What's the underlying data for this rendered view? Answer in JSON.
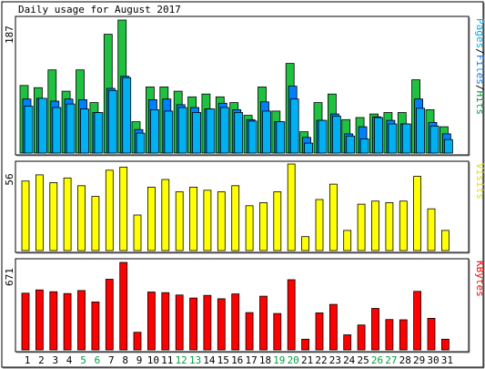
{
  "chart_data": [
    {
      "type": "bar",
      "title": "Daily usage for August 2017",
      "ymax_label": "187",
      "legend": [
        {
          "text": "Pages",
          "color": "#00b0f0"
        },
        {
          "text": "Files",
          "color": "#0080ff"
        },
        {
          "text": "Hits",
          "color": "#00a040"
        }
      ],
      "sep": "/",
      "categories": [
        "1",
        "2",
        "3",
        "4",
        "5",
        "6",
        "7",
        "8",
        "9",
        "10",
        "11",
        "12",
        "13",
        "14",
        "15",
        "16",
        "17",
        "18",
        "19",
        "20",
        "21",
        "22",
        "23",
        "24",
        "25",
        "26",
        "27",
        "28",
        "29",
        "30",
        "31"
      ],
      "weekend_days": [
        "5",
        "6",
        "12",
        "13",
        "19",
        "20",
        "26",
        "27"
      ],
      "series": [
        {
          "name": "Hits",
          "color": "#20c040",
          "values": [
            95,
            92,
            117,
            87,
            117,
            71,
            167,
            187,
            44,
            93,
            93,
            87,
            79,
            83,
            79,
            71,
            53,
            93,
            59,
            126,
            30,
            71,
            83,
            47,
            50,
            55,
            57,
            57,
            103,
            61,
            37
          ]
        },
        {
          "name": "Files",
          "color": "#0080ff",
          "values": [
            76,
            77,
            73,
            76,
            75,
            57,
            91,
            108,
            33,
            75,
            76,
            68,
            64,
            62,
            70,
            61,
            47,
            72,
            44,
            94,
            22,
            46,
            55,
            27,
            37,
            51,
            46,
            41,
            76,
            43,
            27
          ]
        },
        {
          "name": "Pages",
          "color": "#00b0f0",
          "values": [
            66,
            77,
            64,
            69,
            62,
            57,
            88,
            106,
            28,
            61,
            59,
            64,
            57,
            62,
            64,
            57,
            45,
            59,
            44,
            76,
            14,
            46,
            52,
            24,
            20,
            50,
            41,
            41,
            63,
            38,
            19
          ]
        }
      ]
    },
    {
      "type": "bar",
      "ymax_label": "56",
      "legend": [
        {
          "text": "Visits",
          "color": "#e0e000"
        }
      ],
      "categories": [
        "1",
        "2",
        "3",
        "4",
        "5",
        "6",
        "7",
        "8",
        "9",
        "10",
        "11",
        "12",
        "13",
        "14",
        "15",
        "16",
        "17",
        "18",
        "19",
        "20",
        "21",
        "22",
        "23",
        "24",
        "25",
        "26",
        "27",
        "28",
        "29",
        "30",
        "31"
      ],
      "series": [
        {
          "name": "Visits",
          "color": "#ffff00",
          "values": [
            45,
            49,
            44,
            47,
            42,
            35,
            52,
            54,
            23,
            41,
            46,
            38,
            41,
            39,
            38,
            42,
            29,
            31,
            38,
            56,
            9,
            33,
            43,
            13,
            30,
            32,
            31,
            32,
            48,
            27,
            13
          ]
        }
      ]
    },
    {
      "type": "bar",
      "ymax_label": "671",
      "legend": [
        {
          "text": "KBytes",
          "color": "#ff0000"
        }
      ],
      "categories": [
        "1",
        "2",
        "3",
        "4",
        "5",
        "6",
        "7",
        "8",
        "9",
        "10",
        "11",
        "12",
        "13",
        "14",
        "15",
        "16",
        "17",
        "18",
        "19",
        "20",
        "21",
        "22",
        "23",
        "24",
        "25",
        "26",
        "27",
        "28",
        "29",
        "30",
        "31"
      ],
      "series": [
        {
          "name": "KBytes",
          "color": "#ff0000",
          "values": [
            435,
            460,
            446,
            432,
            455,
            368,
            542,
            671,
            135,
            444,
            439,
            421,
            398,
            418,
            392,
            429,
            286,
            412,
            279,
            538,
            82,
            284,
            349,
            115,
            191,
            318,
            233,
            231,
            449,
            242,
            82
          ]
        }
      ]
    }
  ]
}
